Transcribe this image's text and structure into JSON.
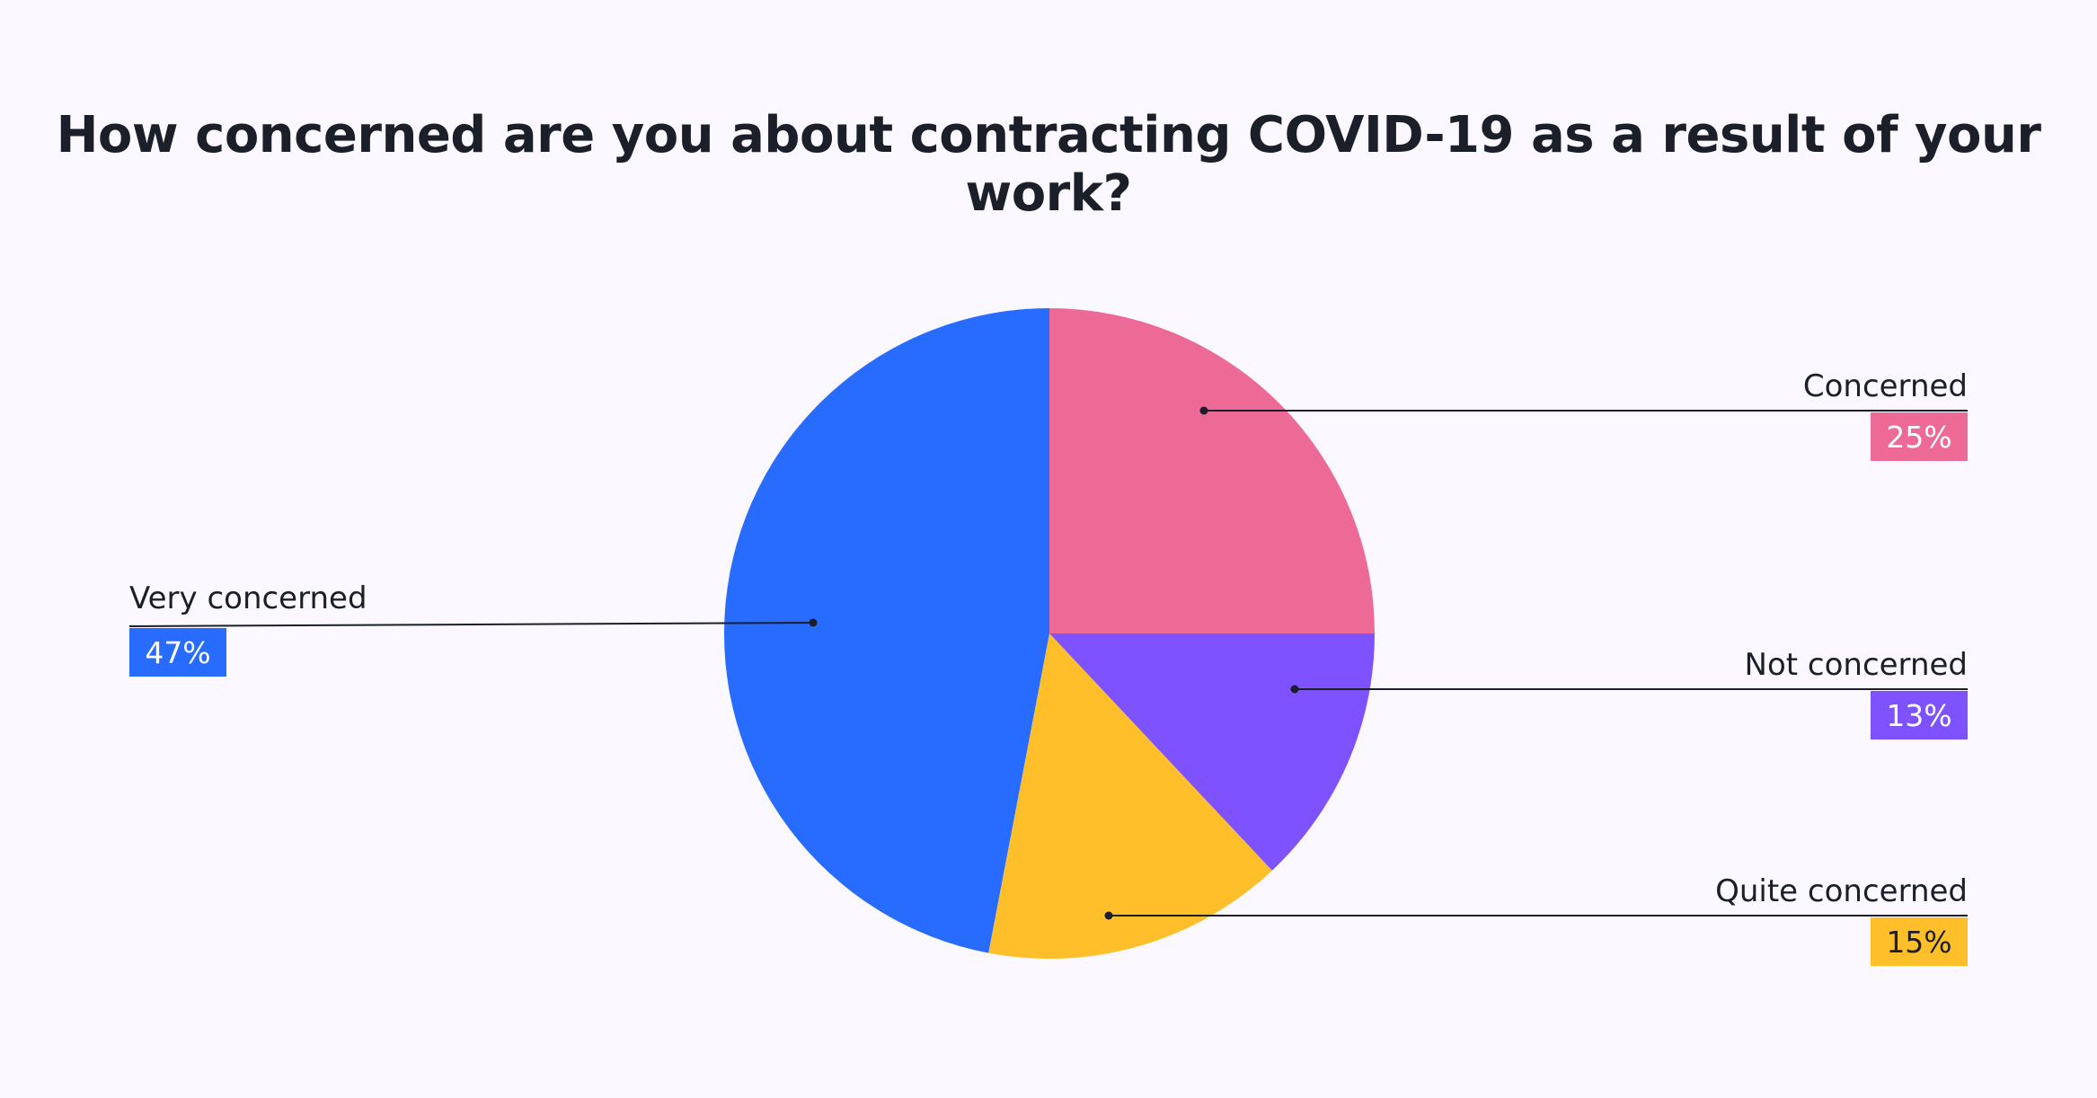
{
  "chart_data": {
    "type": "pie",
    "title": "How concerned are you about contracting COVID-19 as a result of your work?",
    "start_angle_deg": 0,
    "direction": "clockwise",
    "legend": "callout-labels",
    "slices": [
      {
        "label": "Concerned",
        "value": 25,
        "display": "25%",
        "color": "#ee6a96",
        "text_color": "#ffffff",
        "side": "right"
      },
      {
        "label": "Not concerned",
        "value": 13,
        "display": "13%",
        "color": "#7f52ff",
        "text_color": "#ffffff",
        "side": "right"
      },
      {
        "label": "Quite concerned",
        "value": 15,
        "display": "15%",
        "color": "#ffbf2b",
        "text_color": "#1b1f2a",
        "side": "right"
      },
      {
        "label": "Very concerned",
        "value": 47,
        "display": "47%",
        "color": "#276cff",
        "text_color": "#ffffff",
        "side": "left"
      }
    ]
  },
  "colors": {
    "background": "#fbf9ff",
    "text": "#1b1f2a",
    "leader_line": "#1b1f2a"
  }
}
